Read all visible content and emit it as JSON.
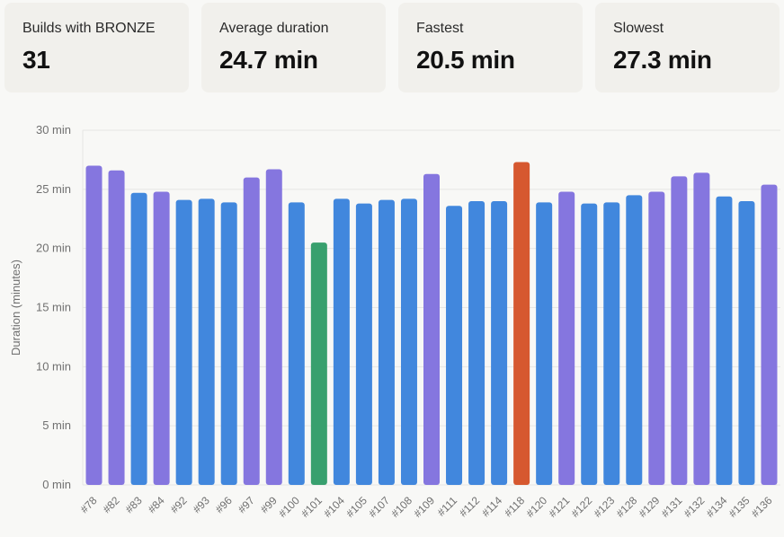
{
  "summary": {
    "builds": {
      "label": "Builds with BRONZE",
      "value": "31"
    },
    "average": {
      "label": "Average duration",
      "value": "24.7 min"
    },
    "fastest": {
      "label": "Fastest",
      "value": "20.5 min"
    },
    "slowest": {
      "label": "Slowest",
      "value": "27.3 min"
    }
  },
  "colors": {
    "normal": "#4187dd",
    "above_average": "#8576df",
    "fastest": "#38a06e",
    "slowest": "#d6582f",
    "grid": "#e6e6e4",
    "axis_text": "#707070"
  },
  "chart_data": {
    "type": "bar",
    "title": "",
    "xlabel": "",
    "ylabel": "Duration (minutes)",
    "ylim": [
      0,
      30
    ],
    "ytick_labels": [
      "0 min",
      "5 min",
      "10 min",
      "15 min",
      "20 min",
      "25 min",
      "30 min"
    ],
    "grid": true,
    "categories": [
      "#78",
      "#82",
      "#83",
      "#84",
      "#92",
      "#93",
      "#96",
      "#97",
      "#99",
      "#100",
      "#101",
      "#104",
      "#105",
      "#107",
      "#108",
      "#109",
      "#111",
      "#112",
      "#114",
      "#118",
      "#120",
      "#121",
      "#122",
      "#123",
      "#128",
      "#129",
      "#131",
      "#132",
      "#134",
      "#135",
      "#136"
    ],
    "values": [
      27.0,
      26.6,
      24.7,
      24.8,
      24.1,
      24.2,
      23.9,
      26.0,
      26.7,
      23.9,
      20.5,
      24.2,
      23.8,
      24.1,
      24.2,
      26.3,
      23.6,
      24.0,
      24.0,
      27.3,
      23.9,
      24.8,
      23.8,
      23.9,
      24.5,
      24.8,
      26.1,
      26.4,
      24.4,
      24.0,
      25.4
    ],
    "bar_color_keys": [
      "above_average",
      "above_average",
      "normal",
      "above_average",
      "normal",
      "normal",
      "normal",
      "above_average",
      "above_average",
      "normal",
      "fastest",
      "normal",
      "normal",
      "normal",
      "normal",
      "above_average",
      "normal",
      "normal",
      "normal",
      "slowest",
      "normal",
      "above_average",
      "normal",
      "normal",
      "normal",
      "above_average",
      "above_average",
      "above_average",
      "normal",
      "normal",
      "above_average"
    ]
  }
}
